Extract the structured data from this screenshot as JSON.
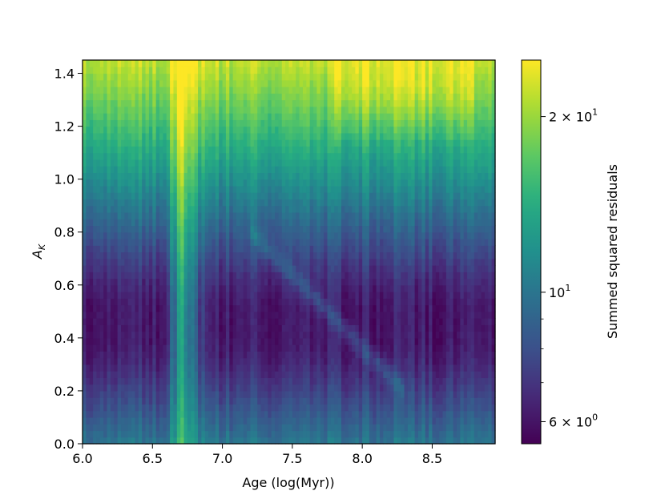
{
  "chart_data": {
    "type": "heatmap",
    "title": "",
    "xlabel": "Age (log(Myr))",
    "ylabel_base": "A",
    "ylabel_sub": "K",
    "xlim": [
      6.0,
      8.95
    ],
    "ylim": [
      0.0,
      1.45
    ],
    "x_ticks": [
      "6.0",
      "6.5",
      "7.0",
      "7.5",
      "8.0",
      "8.5"
    ],
    "y_ticks": [
      "0.0",
      "0.2",
      "0.4",
      "0.6",
      "0.8",
      "1.0",
      "1.2",
      "1.4"
    ],
    "colorbar": {
      "label": "Summed squared residuals",
      "scale": "log",
      "vmin": 5.5,
      "vmax": 25.0,
      "major_ticks": [
        {
          "value": 6,
          "mantissa": "6 × 10",
          "exponent": "0"
        },
        {
          "value": 10,
          "mantissa": "10",
          "exponent": "1"
        },
        {
          "value": 20,
          "mantissa": "2 × 10",
          "exponent": "1"
        }
      ],
      "minor_ticks": [
        7,
        8,
        9
      ],
      "colormap": "viridis"
    },
    "grid": {
      "x_start": 6.0,
      "x_step": 0.025,
      "nx": 118,
      "y_start": 0.0,
      "y_step": 0.025,
      "ny": 58
    }
  }
}
